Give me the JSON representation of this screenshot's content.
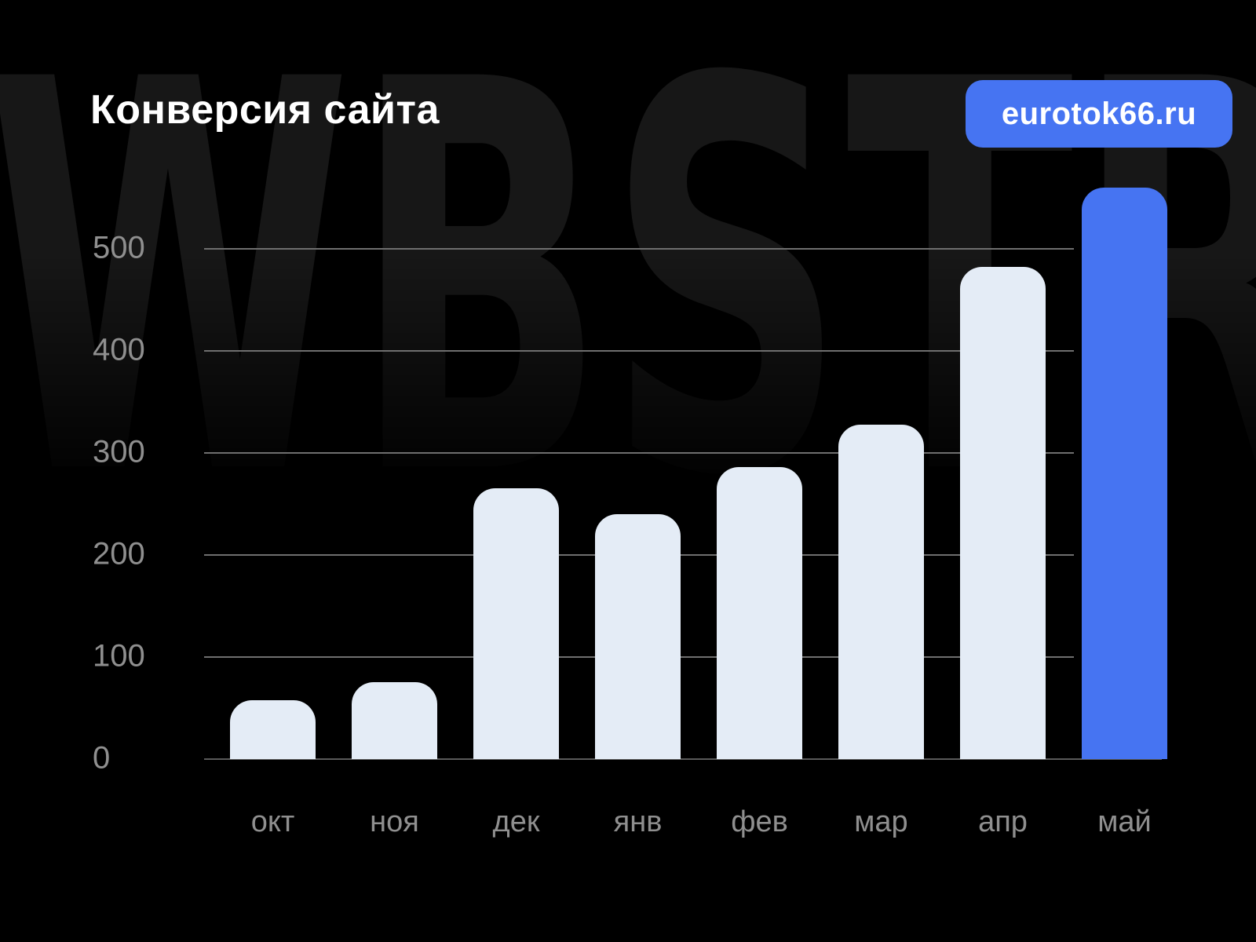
{
  "page": {
    "background_color": "#000000",
    "watermark_text": "WBSTR"
  },
  "header": {
    "title": "Конверсия сайта",
    "badge": {
      "label": "eurotok66.ru",
      "color": "#4674f2"
    }
  },
  "chart_data": {
    "type": "bar",
    "title": "Конверсия сайта",
    "categories": [
      "окт",
      "ноя",
      "дек",
      "янв",
      "фев",
      "мар",
      "апр",
      "май"
    ],
    "values": [
      58,
      75,
      265,
      240,
      286,
      328,
      482,
      560
    ],
    "highlight_index": 7,
    "highlight_category": "май",
    "y_ticks": [
      0,
      100,
      200,
      300,
      400,
      500
    ],
    "ylim": [
      0,
      560
    ],
    "xlabel": "",
    "ylabel": "",
    "grid": true,
    "legend": false,
    "bar_color": "#e4ecf6",
    "highlight_color": "#4674f2",
    "axis_label_color": "#8f8f8f",
    "gridline_color": "#6f6f6f"
  }
}
